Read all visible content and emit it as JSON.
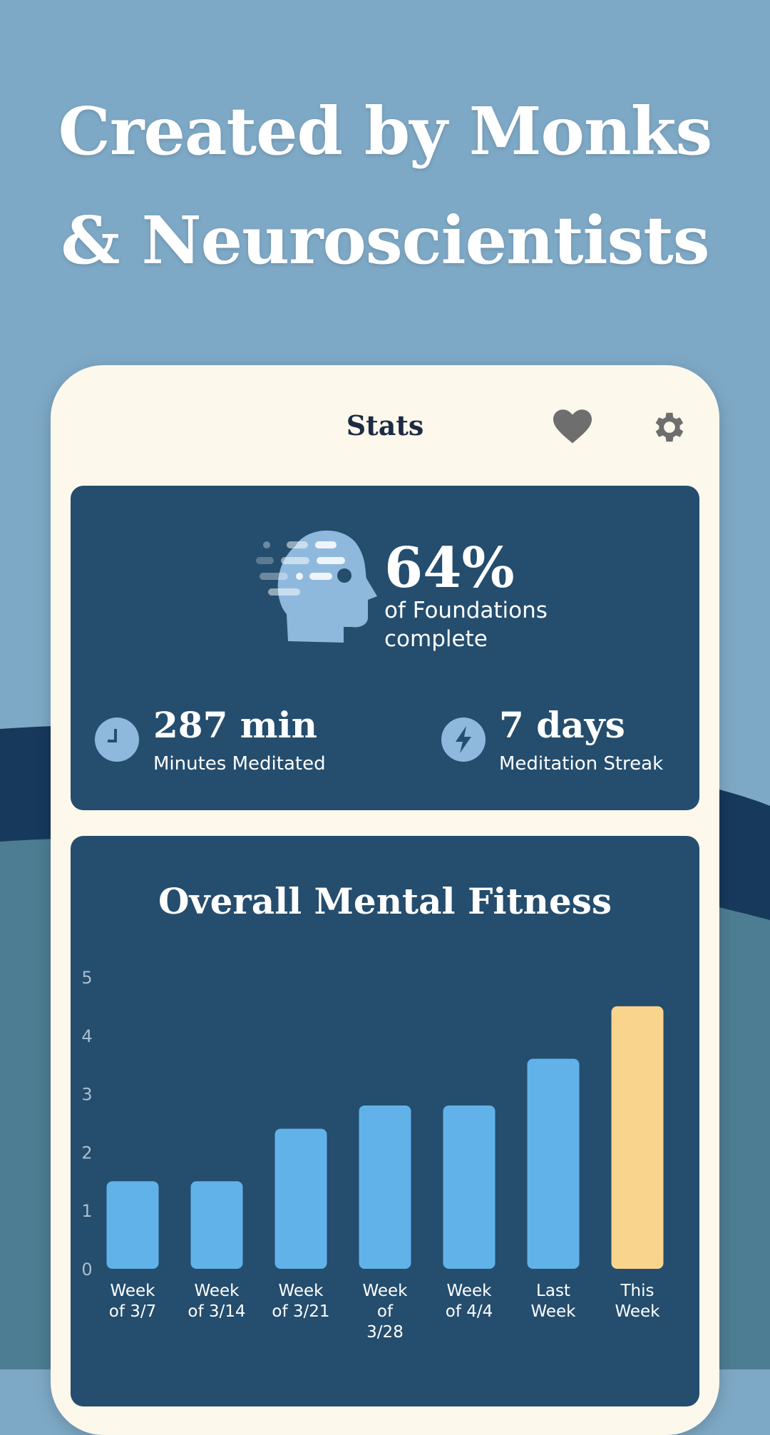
{
  "headline": {
    "line1": "Created by Monks",
    "line2": "& Neuroscientists"
  },
  "header": {
    "title": "Stats",
    "favorites_icon": "heart-icon",
    "settings_icon": "gear-icon"
  },
  "progress": {
    "percent_label": "64%",
    "percent": 64,
    "line1": "of Foundations",
    "line2": "complete",
    "icon": "head-icon"
  },
  "metrics": [
    {
      "value": "287 min",
      "label": "Minutes Meditated",
      "icon": "clock-icon"
    },
    {
      "value": "7 days",
      "label": "Meditation Streak",
      "icon": "lightning-bolt-icon"
    }
  ],
  "colors": {
    "background": "#7ea9c6",
    "card": "#fdf8ec",
    "panel": "#244d6e",
    "bar": "#62b2ea",
    "bar_highlight": "#f9d48d"
  },
  "chart_data": {
    "type": "bar",
    "title": "Overall Mental Fitness",
    "categories": [
      [
        "Week",
        "of 3/7"
      ],
      [
        "Week",
        "of 3/14"
      ],
      [
        "Week",
        "of 3/21"
      ],
      [
        "Week",
        "of",
        "3/28"
      ],
      [
        "Week",
        "of 4/4"
      ],
      [
        "Last",
        "Week"
      ],
      [
        "This",
        "Week"
      ]
    ],
    "values": [
      1.5,
      1.5,
      2.4,
      2.8,
      2.8,
      3.6,
      4.5
    ],
    "highlight_index": 6,
    "ylim": [
      0,
      5
    ],
    "yticks": [
      "0",
      "1",
      "2",
      "3",
      "4",
      "5"
    ],
    "grid": false
  }
}
